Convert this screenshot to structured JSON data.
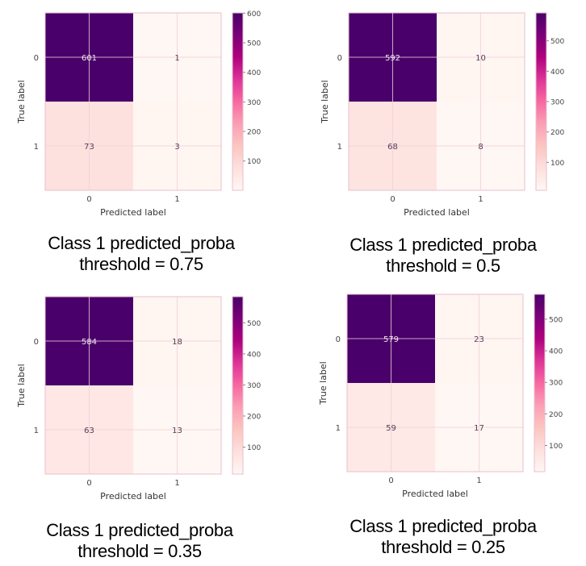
{
  "colors": {
    "cmap": [
      "#fff7f3",
      "#fde0dd",
      "#fcc5c0",
      "#fa9fb5",
      "#f768a1",
      "#dd3497",
      "#ae017e",
      "#7a0177",
      "#49006a"
    ],
    "text_on_dark": "#f3e6f0",
    "text_on_light": "#5a3a58",
    "axis_text": "#444444",
    "grid": "#f2cfd9",
    "frame": "#e8bfcf"
  },
  "chart_data": [
    {
      "type": "heatmap",
      "xlabel": "Predicted label",
      "ylabel": "True label",
      "x_ticks": [
        "0",
        "1"
      ],
      "y_ticks": [
        "0",
        "1"
      ],
      "values": [
        [
          601,
          1
        ],
        [
          73,
          3
        ]
      ],
      "colorbar_range": [
        1,
        601
      ],
      "colorbar_ticks": [
        "100",
        "200",
        "300",
        "400",
        "500",
        "600"
      ],
      "caption": [
        "Class 1 predicted_proba",
        "threshold = 0.75"
      ]
    },
    {
      "type": "heatmap",
      "xlabel": "Predicted label",
      "ylabel": "True label",
      "x_ticks": [
        "0",
        "1"
      ],
      "y_ticks": [
        "0",
        "1"
      ],
      "values": [
        [
          592,
          10
        ],
        [
          68,
          8
        ]
      ],
      "colorbar_range": [
        8,
        592
      ],
      "colorbar_ticks": [
        "100",
        "200",
        "300",
        "400",
        "500"
      ],
      "caption": [
        "Class 1 predicted_proba",
        "threshold = 0.5"
      ]
    },
    {
      "type": "heatmap",
      "xlabel": "Predicted label",
      "ylabel": "True label",
      "x_ticks": [
        "0",
        "1"
      ],
      "y_ticks": [
        "0",
        "1"
      ],
      "values": [
        [
          584,
          18
        ],
        [
          63,
          13
        ]
      ],
      "colorbar_range": [
        13,
        584
      ],
      "colorbar_ticks": [
        "100",
        "200",
        "300",
        "400",
        "500"
      ],
      "caption": [
        "Class 1 predicted_proba",
        "threshold = 0.35"
      ]
    },
    {
      "type": "heatmap",
      "xlabel": "Predicted label",
      "ylabel": "True label",
      "x_ticks": [
        "0",
        "1"
      ],
      "y_ticks": [
        "0",
        "1"
      ],
      "values": [
        [
          579,
          23
        ],
        [
          59,
          17
        ]
      ],
      "colorbar_range": [
        17,
        579
      ],
      "colorbar_ticks": [
        "100",
        "200",
        "300",
        "400",
        "500"
      ],
      "caption": [
        "Class 1 predicted_proba",
        "threshold = 0.25"
      ]
    }
  ]
}
